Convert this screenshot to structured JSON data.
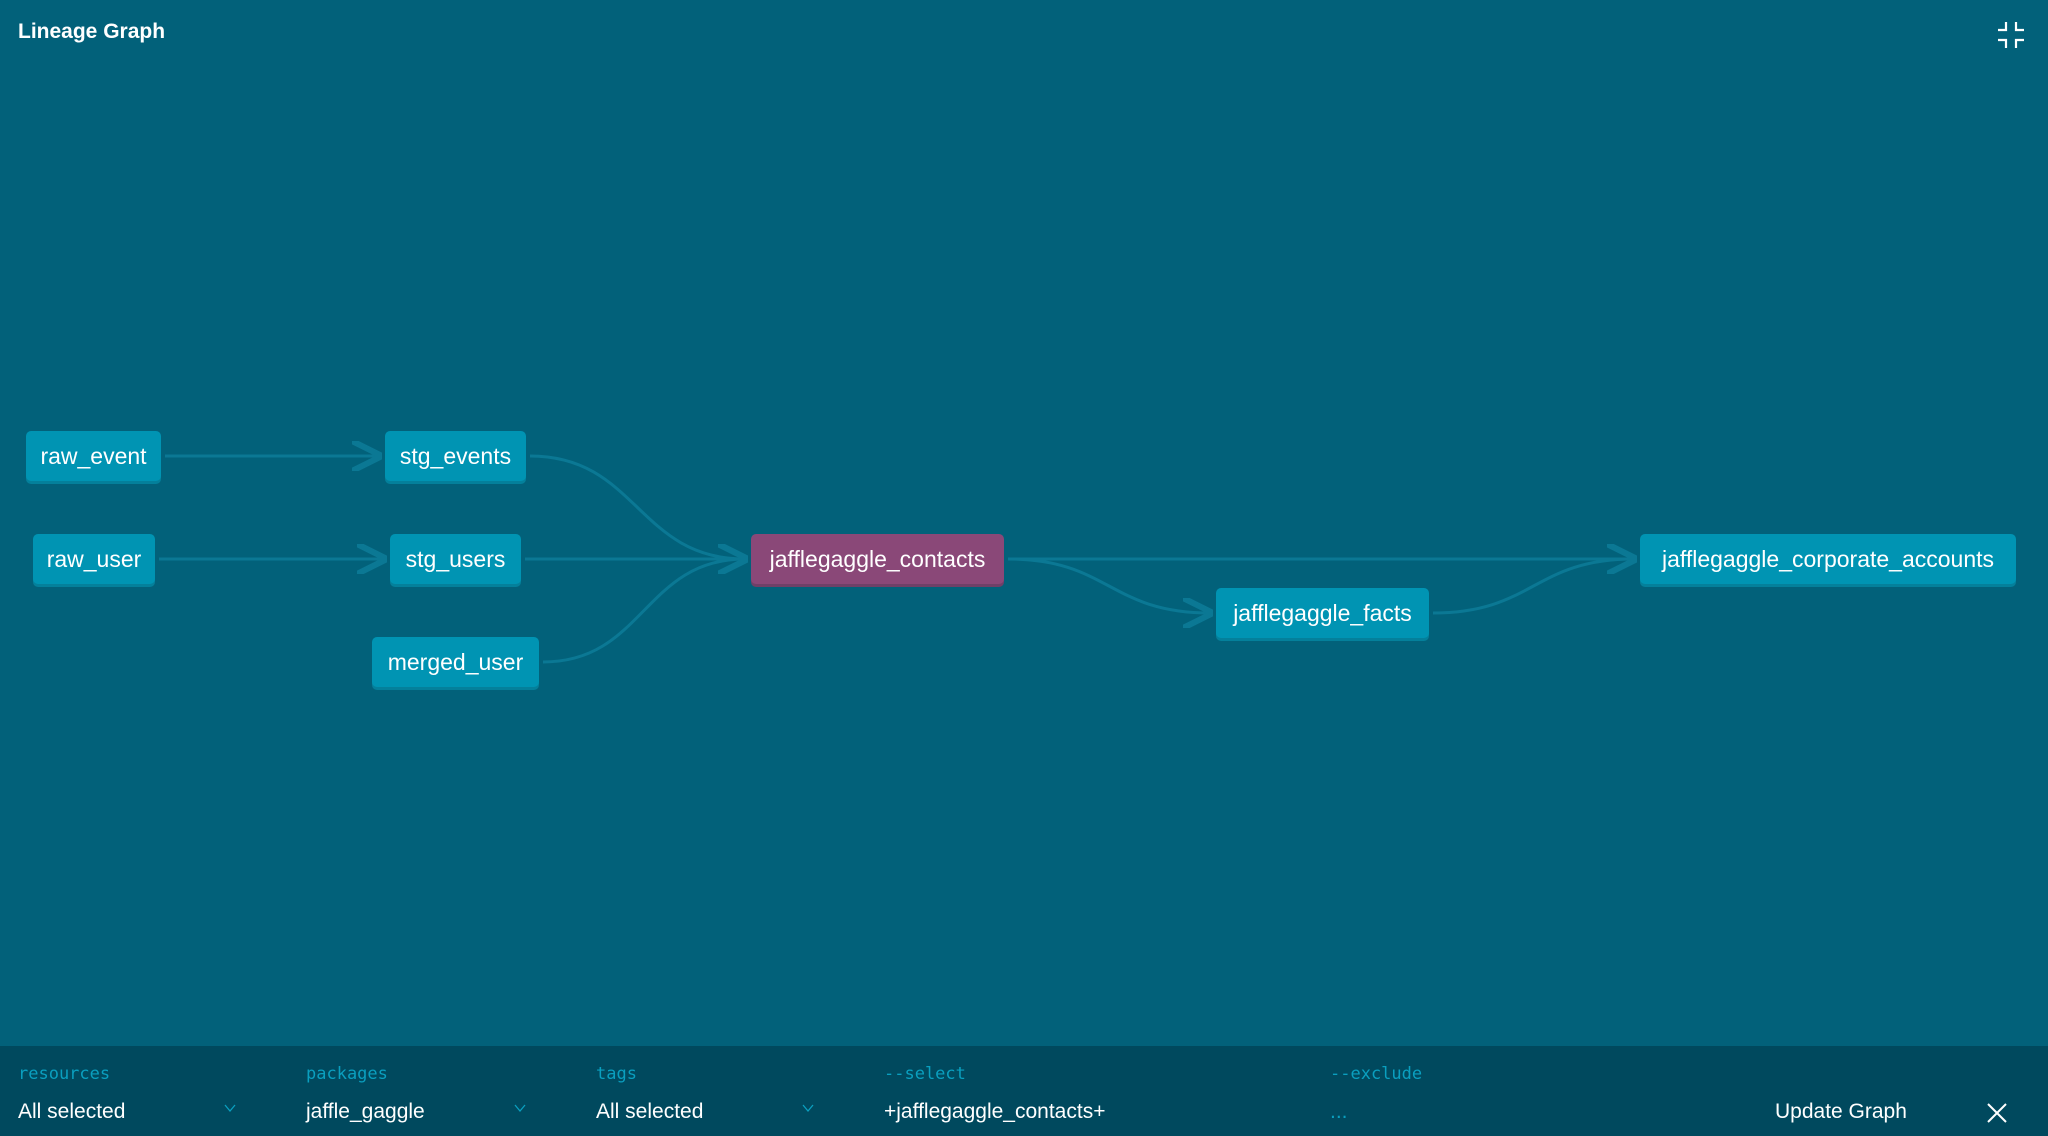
{
  "header": {
    "title": "Lineage Graph",
    "collapse_icon": "collapse-icon"
  },
  "graph": {
    "nodes": [
      {
        "id": "raw_event",
        "label": "raw_event",
        "selected": false
      },
      {
        "id": "raw_user",
        "label": "raw_user",
        "selected": false
      },
      {
        "id": "stg_events",
        "label": "stg_events",
        "selected": false
      },
      {
        "id": "stg_users",
        "label": "stg_users",
        "selected": false
      },
      {
        "id": "merged_user",
        "label": "merged_user",
        "selected": false
      },
      {
        "id": "jafflegaggle_contacts",
        "label": "jafflegaggle_contacts",
        "selected": true
      },
      {
        "id": "jafflegaggle_facts",
        "label": "jafflegaggle_facts",
        "selected": false
      },
      {
        "id": "jafflegaggle_corporate_accounts",
        "label": "jafflegaggle_corporate_accounts",
        "selected": false
      }
    ],
    "edges": [
      [
        "raw_event",
        "stg_events"
      ],
      [
        "raw_user",
        "stg_users"
      ],
      [
        "stg_events",
        "jafflegaggle_contacts"
      ],
      [
        "stg_users",
        "jafflegaggle_contacts"
      ],
      [
        "merged_user",
        "jafflegaggle_contacts"
      ],
      [
        "jafflegaggle_contacts",
        "jafflegaggle_facts"
      ],
      [
        "jafflegaggle_contacts",
        "jafflegaggle_corporate_accounts"
      ],
      [
        "jafflegaggle_facts",
        "jafflegaggle_corporate_accounts"
      ]
    ],
    "colors": {
      "node": "#0094b3",
      "selected": "#8a4878",
      "edge": "#0b7894",
      "background": "#02617a"
    }
  },
  "toolbar": {
    "resources": {
      "label": "resources",
      "value": "All selected"
    },
    "packages": {
      "label": "packages",
      "value": "jaffle_gaggle"
    },
    "tags": {
      "label": "tags",
      "value": "All selected"
    },
    "select": {
      "label": "--select",
      "value": "+jafflegaggle_contacts+"
    },
    "exclude": {
      "label": "--exclude",
      "placeholder": "..."
    },
    "update_label": "Update Graph",
    "close_icon": "close-icon"
  }
}
